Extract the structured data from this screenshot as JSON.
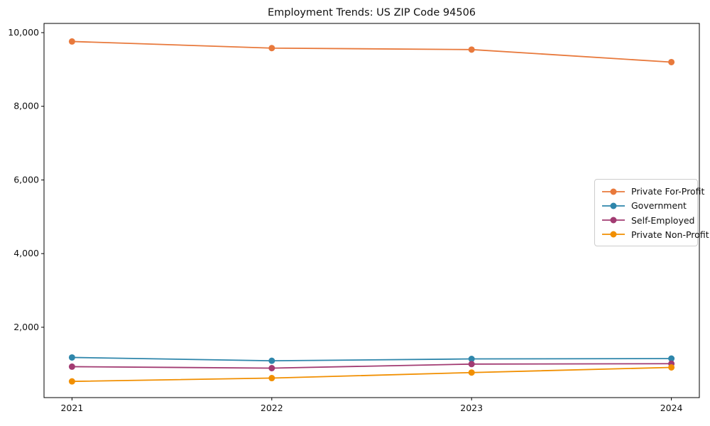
{
  "chart_data": {
    "type": "line",
    "title": "Employment Trends: US ZIP Code 94506",
    "xlabel": "",
    "ylabel": "",
    "x": [
      2021,
      2022,
      2023,
      2024
    ],
    "x_tick_labels": [
      "2021",
      "2022",
      "2023",
      "2024"
    ],
    "y_ticks": [
      2000,
      4000,
      6000,
      8000,
      10000
    ],
    "y_tick_labels": [
      "2,000",
      "4,000",
      "6,000",
      "8,000",
      "10,000"
    ],
    "xlim": [
      2020.86,
      2024.14
    ],
    "ylim": [
      90,
      10250
    ],
    "grid": false,
    "marker": "circle",
    "legend_position": "center right",
    "series": [
      {
        "name": "Private For-Profit",
        "color": "#e8793c",
        "values": [
          9760,
          9580,
          9540,
          9200
        ]
      },
      {
        "name": "Government",
        "color": "#2e86ab",
        "values": [
          1180,
          1090,
          1140,
          1150
        ]
      },
      {
        "name": "Self-Employed",
        "color": "#a23b72",
        "values": [
          930,
          890,
          1000,
          1010
        ]
      },
      {
        "name": "Private Non-Profit",
        "color": "#f18f01",
        "values": [
          530,
          620,
          770,
          910
        ]
      }
    ],
    "axis_color": "#000000",
    "text_color": "#111111",
    "background": "#ffffff"
  }
}
